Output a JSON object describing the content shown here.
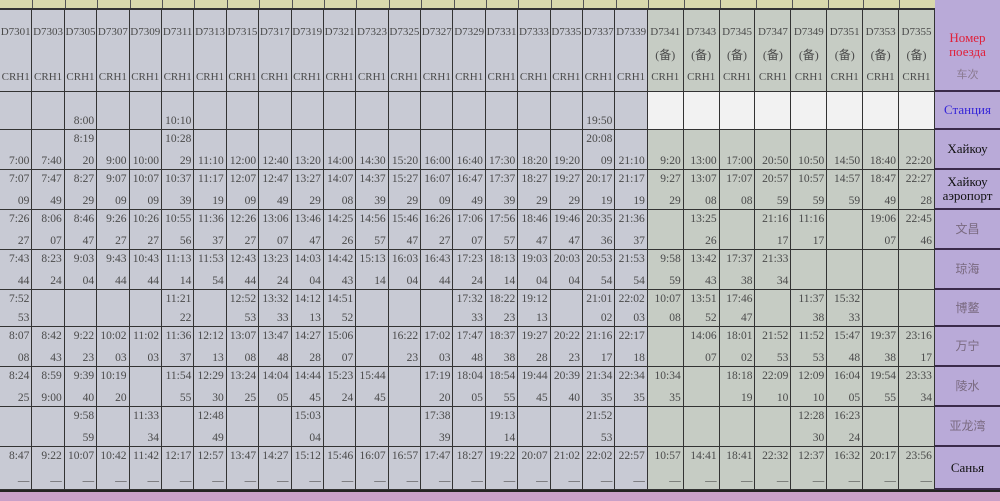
{
  "colors": {
    "table_main": "#c8cad4",
    "table_reserve": "#c6ccc4",
    "label_column": "#b9aad8",
    "header_label": "#e0203a",
    "station_label": "#3524d8",
    "top_strip": "#d9d9ac"
  },
  "trains": [
    {
      "number": "D7301",
      "note": "",
      "type": "CRH1"
    },
    {
      "number": "D7303",
      "note": "",
      "type": "CRH1"
    },
    {
      "number": "D7305",
      "note": "",
      "type": "CRH1"
    },
    {
      "number": "D7307",
      "note": "",
      "type": "CRH1"
    },
    {
      "number": "D7309",
      "note": "",
      "type": "CRH1"
    },
    {
      "number": "D7311",
      "note": "",
      "type": "CRH1"
    },
    {
      "number": "D7313",
      "note": "",
      "type": "CRH1"
    },
    {
      "number": "D7315",
      "note": "",
      "type": "CRH1"
    },
    {
      "number": "D7317",
      "note": "",
      "type": "CRH1"
    },
    {
      "number": "D7319",
      "note": "",
      "type": "CRH1"
    },
    {
      "number": "D7321",
      "note": "",
      "type": "CRH1"
    },
    {
      "number": "D7323",
      "note": "",
      "type": "CRH1"
    },
    {
      "number": "D7325",
      "note": "",
      "type": "CRH1"
    },
    {
      "number": "D7327",
      "note": "",
      "type": "CRH1"
    },
    {
      "number": "D7329",
      "note": "",
      "type": "CRH1"
    },
    {
      "number": "D7331",
      "note": "",
      "type": "CRH1"
    },
    {
      "number": "D7333",
      "note": "",
      "type": "CRH1"
    },
    {
      "number": "D7335",
      "note": "",
      "type": "CRH1"
    },
    {
      "number": "D7337",
      "note": "",
      "type": "CRH1"
    },
    {
      "number": "D7339",
      "note": "",
      "type": "CRH1"
    },
    {
      "number": "D7341",
      "note": "(备)",
      "type": "CRH1"
    },
    {
      "number": "D7343",
      "note": "(备)",
      "type": "CRH1"
    },
    {
      "number": "D7345",
      "note": "(备)",
      "type": "CRH1"
    },
    {
      "number": "D7347",
      "note": "(备)",
      "type": "CRH1"
    },
    {
      "number": "D7349",
      "note": "(备)",
      "type": "CRH1"
    },
    {
      "number": "D7351",
      "note": "(备)",
      "type": "CRH1"
    },
    {
      "number": "D7353",
      "note": "(备)",
      "type": "CRH1"
    },
    {
      "number": "D7355",
      "note": "(备)",
      "type": "CRH1"
    }
  ],
  "header_label": {
    "text": "Номер поезда",
    "underlay": "车次"
  },
  "stations": [
    {
      "label": "Станция",
      "times": [
        [],
        [],
        [
          "",
          "8:00"
        ],
        [],
        [],
        [
          "",
          "10:10"
        ],
        [],
        [],
        [],
        [],
        [],
        [],
        [],
        [],
        [],
        [],
        [],
        [],
        [
          "",
          "19:50"
        ],
        [],
        [],
        [],
        [],
        [],
        [],
        [],
        [],
        []
      ]
    },
    {
      "label": "Хайкоу",
      "times": [
        [
          "",
          "7:00"
        ],
        [
          "",
          "7:40"
        ],
        [
          "8:19",
          "20"
        ],
        [
          "",
          "9:00"
        ],
        [
          "",
          "10:00"
        ],
        [
          "10:28",
          "29"
        ],
        [
          "",
          "11:10"
        ],
        [
          "",
          "12:00"
        ],
        [
          "",
          "12:40"
        ],
        [
          "",
          "13:20"
        ],
        [
          "",
          "14:00"
        ],
        [
          "",
          "14:30"
        ],
        [
          "",
          "15:20"
        ],
        [
          "",
          "16:00"
        ],
        [
          "",
          "16:40"
        ],
        [
          "",
          "17:30"
        ],
        [
          "",
          "18:20"
        ],
        [
          "",
          "19:20"
        ],
        [
          "20:08",
          "09"
        ],
        [
          "",
          "21:10"
        ],
        [
          "",
          "9:20"
        ],
        [
          "",
          "13:00"
        ],
        [
          "",
          "17:00"
        ],
        [
          "",
          "20:50"
        ],
        [
          "",
          "10:50"
        ],
        [
          "",
          "14:50"
        ],
        [
          "",
          "18:40"
        ],
        [
          "",
          "22:20"
        ]
      ]
    },
    {
      "label": "Хайкоу аэропорт",
      "times": [
        [
          "7:07",
          "09"
        ],
        [
          "7:47",
          "49"
        ],
        [
          "8:27",
          "29"
        ],
        [
          "9:07",
          "09"
        ],
        [
          "10:07",
          "09"
        ],
        [
          "10:37",
          "39"
        ],
        [
          "11:17",
          "19"
        ],
        [
          "12:07",
          "09"
        ],
        [
          "12:47",
          "49"
        ],
        [
          "13:27",
          "29"
        ],
        [
          "14:07",
          "08"
        ],
        [
          "14:37",
          "39"
        ],
        [
          "15:27",
          "29"
        ],
        [
          "16:07",
          "09"
        ],
        [
          "16:47",
          "49"
        ],
        [
          "17:37",
          "39"
        ],
        [
          "18:27",
          "29"
        ],
        [
          "19:27",
          "29"
        ],
        [
          "20:17",
          "19"
        ],
        [
          "21:17",
          "19"
        ],
        [
          "9:27",
          "29"
        ],
        [
          "13:07",
          "08"
        ],
        [
          "17:07",
          "08"
        ],
        [
          "20:57",
          "59"
        ],
        [
          "10:57",
          "59"
        ],
        [
          "14:57",
          "59"
        ],
        [
          "18:47",
          "49"
        ],
        [
          "22:27",
          "28"
        ]
      ]
    },
    {
      "label": "文昌",
      "times": [
        [
          "7:26",
          "27"
        ],
        [
          "8:06",
          "07"
        ],
        [
          "8:46",
          "47"
        ],
        [
          "9:26",
          "27"
        ],
        [
          "10:26",
          "27"
        ],
        [
          "10:55",
          "56"
        ],
        [
          "11:36",
          "37"
        ],
        [
          "12:26",
          "27"
        ],
        [
          "13:06",
          "07"
        ],
        [
          "13:46",
          "47"
        ],
        [
          "14:25",
          "26"
        ],
        [
          "14:56",
          "57"
        ],
        [
          "15:46",
          "47"
        ],
        [
          "16:26",
          "27"
        ],
        [
          "17:06",
          "07"
        ],
        [
          "17:56",
          "57"
        ],
        [
          "18:46",
          "47"
        ],
        [
          "19:46",
          "47"
        ],
        [
          "20:35",
          "36"
        ],
        [
          "21:36",
          "37"
        ],
        [],
        [
          "13:25",
          "26"
        ],
        [],
        [
          "21:16",
          "17"
        ],
        [
          "11:16",
          "17"
        ],
        [],
        [
          "19:06",
          "07"
        ],
        [
          "22:45",
          "46"
        ]
      ]
    },
    {
      "label": "琼海",
      "times": [
        [
          "7:43",
          "44"
        ],
        [
          "8:23",
          "24"
        ],
        [
          "9:03",
          "04"
        ],
        [
          "9:43",
          "44"
        ],
        [
          "10:43",
          "44"
        ],
        [
          "11:13",
          "14"
        ],
        [
          "11:53",
          "54"
        ],
        [
          "12:43",
          "44"
        ],
        [
          "13:23",
          "24"
        ],
        [
          "14:03",
          "04"
        ],
        [
          "14:42",
          "43"
        ],
        [
          "15:13",
          "14"
        ],
        [
          "16:03",
          "04"
        ],
        [
          "16:43",
          "44"
        ],
        [
          "17:23",
          "24"
        ],
        [
          "18:13",
          "14"
        ],
        [
          "19:03",
          "04"
        ],
        [
          "20:03",
          "04"
        ],
        [
          "20:53",
          "54"
        ],
        [
          "21:53",
          "54"
        ],
        [
          "9:58",
          "59"
        ],
        [
          "13:42",
          "43"
        ],
        [
          "17:37",
          "38"
        ],
        [
          "21:33",
          "34"
        ],
        [],
        [],
        [],
        []
      ]
    },
    {
      "label": "博鳌",
      "times": [
        [
          "7:52",
          "53"
        ],
        [],
        [],
        [],
        [],
        [
          "11:21",
          "22"
        ],
        [],
        [
          "12:52",
          "53"
        ],
        [
          "13:32",
          "33"
        ],
        [
          "14:12",
          "13"
        ],
        [
          "14:51",
          "52"
        ],
        [],
        [],
        [],
        [
          "17:32",
          "33"
        ],
        [
          "18:22",
          "23"
        ],
        [
          "19:12",
          "13"
        ],
        [],
        [
          "21:01",
          "02"
        ],
        [
          "22:02",
          "03"
        ],
        [
          "10:07",
          "08"
        ],
        [
          "13:51",
          "52"
        ],
        [
          "17:46",
          "47"
        ],
        [],
        [
          "11:37",
          "38"
        ],
        [
          "15:32",
          "33"
        ],
        [],
        []
      ]
    },
    {
      "label": "万宁",
      "times": [
        [
          "8:07",
          "08"
        ],
        [
          "8:42",
          "43"
        ],
        [
          "9:22",
          "23"
        ],
        [
          "10:02",
          "03"
        ],
        [
          "11:02",
          "03"
        ],
        [
          "11:36",
          "37"
        ],
        [
          "12:12",
          "13"
        ],
        [
          "13:07",
          "08"
        ],
        [
          "13:47",
          "48"
        ],
        [
          "14:27",
          "28"
        ],
        [
          "15:06",
          "07"
        ],
        [],
        [
          "16:22",
          "23"
        ],
        [
          "17:02",
          "03"
        ],
        [
          "17:47",
          "48"
        ],
        [
          "18:37",
          "38"
        ],
        [
          "19:27",
          "28"
        ],
        [
          "20:22",
          "23"
        ],
        [
          "21:16",
          "17"
        ],
        [
          "22:17",
          "18"
        ],
        [],
        [
          "14:06",
          "07"
        ],
        [
          "18:01",
          "02"
        ],
        [
          "21:52",
          "53"
        ],
        [
          "11:52",
          "53"
        ],
        [
          "15:47",
          "48"
        ],
        [
          "19:37",
          "38"
        ],
        [
          "23:16",
          "17"
        ]
      ]
    },
    {
      "label": "陵水",
      "times": [
        [
          "8:24",
          "25"
        ],
        [
          "8:59",
          "9:00"
        ],
        [
          "9:39",
          "40"
        ],
        [
          "10:19",
          "20"
        ],
        [],
        [
          "11:54",
          "55"
        ],
        [
          "12:29",
          "30"
        ],
        [
          "13:24",
          "25"
        ],
        [
          "14:04",
          "05"
        ],
        [
          "14:44",
          "45"
        ],
        [
          "15:23",
          "24"
        ],
        [
          "15:44",
          "45"
        ],
        [],
        [
          "17:19",
          "20"
        ],
        [
          "18:04",
          "05"
        ],
        [
          "18:54",
          "55"
        ],
        [
          "19:44",
          "45"
        ],
        [
          "20:39",
          "40"
        ],
        [
          "21:34",
          "35"
        ],
        [
          "22:34",
          "35"
        ],
        [
          "10:34",
          "35"
        ],
        [],
        [
          "18:18",
          "19"
        ],
        [
          "22:09",
          "10"
        ],
        [
          "12:09",
          "10"
        ],
        [
          "16:04",
          "05"
        ],
        [
          "19:54",
          "55"
        ],
        [
          "23:33",
          "34"
        ]
      ]
    },
    {
      "label": "亚龙湾",
      "times": [
        [],
        [],
        [
          "9:58",
          "59"
        ],
        [],
        [
          "11:33",
          "34"
        ],
        [],
        [
          "12:48",
          "49"
        ],
        [],
        [],
        [
          "15:03",
          "04"
        ],
        [],
        [],
        [],
        [
          "17:38",
          "39"
        ],
        [],
        [
          "19:13",
          "14"
        ],
        [],
        [],
        [
          "21:52",
          "53"
        ],
        [],
        [],
        [],
        [],
        [],
        [
          "12:28",
          "30"
        ],
        [
          "16:23",
          "24"
        ],
        [],
        []
      ]
    },
    {
      "label": "Санья",
      "times": [
        [
          "8:47",
          "—"
        ],
        [
          "9:22",
          "—"
        ],
        [
          "10:07",
          "—"
        ],
        [
          "10:42",
          "—"
        ],
        [
          "11:42",
          "—"
        ],
        [
          "12:17",
          "—"
        ],
        [
          "12:57",
          "—"
        ],
        [
          "13:47",
          "—"
        ],
        [
          "14:27",
          "—"
        ],
        [
          "15:12",
          "—"
        ],
        [
          "15:46",
          "—"
        ],
        [
          "16:07",
          "—"
        ],
        [
          "16:57",
          "—"
        ],
        [
          "17:47",
          "—"
        ],
        [
          "18:27",
          "—"
        ],
        [
          "19:22",
          "—"
        ],
        [
          "20:07",
          "—"
        ],
        [
          "21:02",
          "—"
        ],
        [
          "22:02",
          "—"
        ],
        [
          "22:57",
          "—"
        ],
        [
          "10:57",
          "—"
        ],
        [
          "14:41",
          "—"
        ],
        [
          "18:41",
          "—"
        ],
        [
          "22:32",
          "—"
        ],
        [
          "12:37",
          "—"
        ],
        [
          "16:32",
          "—"
        ],
        [
          "20:17",
          "—"
        ],
        [
          "23:56",
          "—"
        ]
      ]
    }
  ]
}
